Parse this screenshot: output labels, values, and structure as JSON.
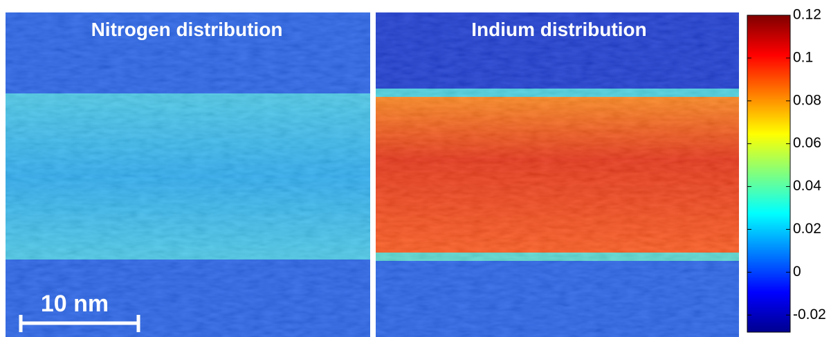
{
  "panels": [
    {
      "title": "Nitrogen distribution"
    },
    {
      "title": "Indium distribution"
    }
  ],
  "scale_bar": {
    "label": "10 nm"
  },
  "colorbar": {
    "clim": [
      -0.028,
      0.12
    ],
    "ticks": [
      0.12,
      0.1,
      0.08,
      0.06,
      0.04,
      0.02,
      0,
      -0.02
    ]
  }
}
